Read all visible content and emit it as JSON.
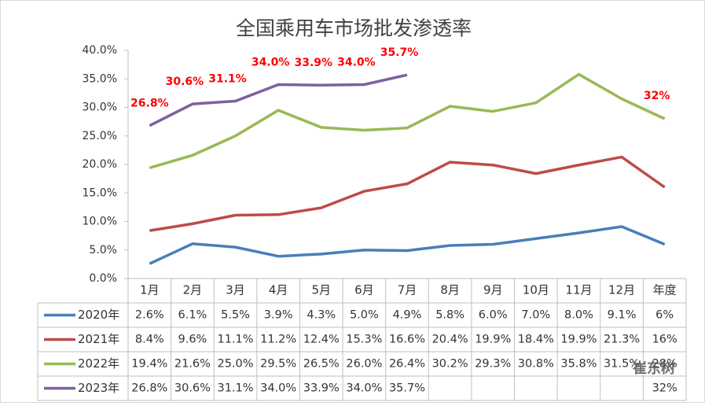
{
  "chart_data": {
    "type": "line",
    "title": "全国乘用车市场批发渗透率",
    "categories": [
      "1月",
      "2月",
      "3月",
      "4月",
      "5月",
      "6月",
      "7月",
      "8月",
      "9月",
      "10月",
      "11月",
      "12月",
      "年度"
    ],
    "ylim": [
      0,
      40
    ],
    "yticks": [
      {
        "value": 0,
        "label": "0.0%"
      },
      {
        "value": 5,
        "label": "5.0%"
      },
      {
        "value": 10,
        "label": "10.0%"
      },
      {
        "value": 15,
        "label": "15.0%"
      },
      {
        "value": 20,
        "label": "20.0%"
      },
      {
        "value": 25,
        "label": "25.0%"
      },
      {
        "value": 30,
        "label": "30.0%"
      },
      {
        "value": 35,
        "label": "35.0%"
      },
      {
        "value": 40,
        "label": "40.0%"
      }
    ],
    "grid": false,
    "series": [
      {
        "name": "2020年",
        "color": "#4a7ebb",
        "values": [
          2.6,
          6.1,
          5.5,
          3.9,
          4.3,
          5.0,
          4.9,
          5.8,
          6.0,
          7.0,
          8.0,
          9.1,
          6
        ],
        "value_labels": [
          "2.6%",
          "6.1%",
          "5.5%",
          "3.9%",
          "4.3%",
          "5.0%",
          "4.9%",
          "5.8%",
          "6.0%",
          "7.0%",
          "8.0%",
          "9.1%",
          "6%"
        ]
      },
      {
        "name": "2021年",
        "color": "#be4b48",
        "values": [
          8.4,
          9.6,
          11.1,
          11.2,
          12.4,
          15.3,
          16.6,
          20.4,
          19.9,
          18.4,
          19.9,
          21.3,
          16
        ],
        "value_labels": [
          "8.4%",
          "9.6%",
          "11.1%",
          "11.2%",
          "12.4%",
          "15.3%",
          "16.6%",
          "20.4%",
          "19.9%",
          "18.4%",
          "19.9%",
          "21.3%",
          "16%"
        ]
      },
      {
        "name": "2022年",
        "color": "#98b954",
        "values": [
          19.4,
          21.6,
          25.0,
          29.5,
          26.5,
          26.0,
          26.4,
          30.2,
          29.3,
          30.8,
          35.8,
          31.5,
          28
        ],
        "value_labels": [
          "19.4%",
          "21.6%",
          "25.0%",
          "29.5%",
          "26.5%",
          "26.0%",
          "26.4%",
          "30.2%",
          "29.3%",
          "30.8%",
          "35.8%",
          "31.5%",
          "28%"
        ]
      },
      {
        "name": "2023年",
        "color": "#7d60a0",
        "label_color": "#ff0000",
        "values": [
          26.8,
          30.6,
          31.1,
          34.0,
          33.9,
          34.0,
          35.7,
          null,
          null,
          null,
          null,
          null,
          32
        ],
        "value_labels": [
          "26.8%",
          "30.6%",
          "31.1%",
          "34.0%",
          "33.9%",
          "34.0%",
          "35.7%",
          null,
          null,
          null,
          null,
          null,
          "32%"
        ]
      }
    ],
    "watermark": "崔东树"
  }
}
